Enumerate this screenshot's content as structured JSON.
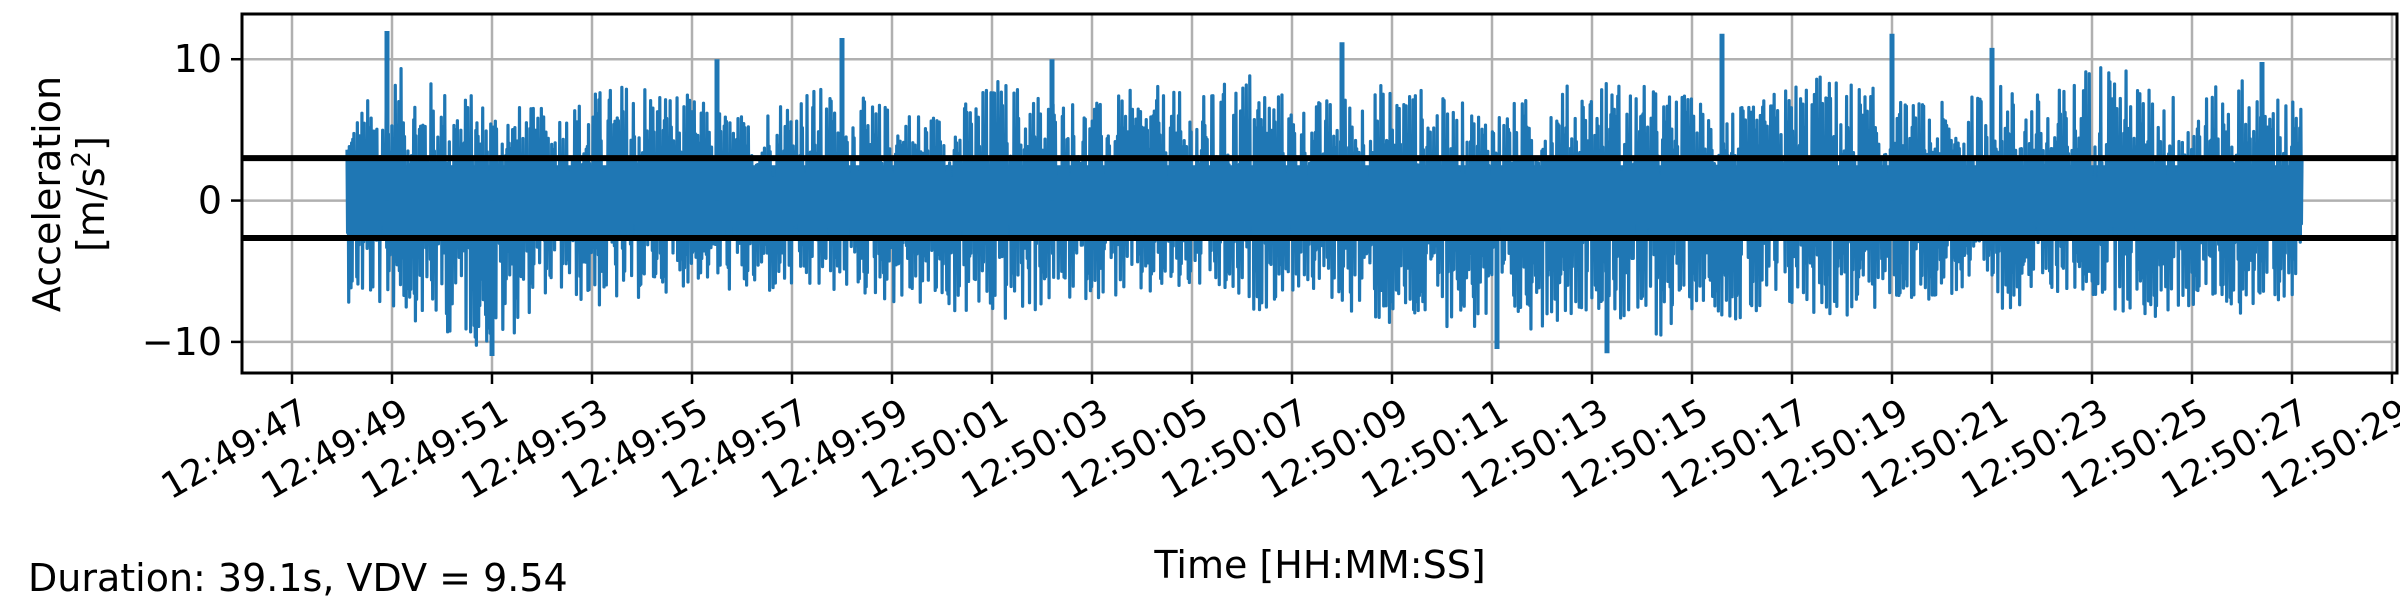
{
  "chart_data": {
    "type": "line",
    "title": "",
    "xlabel": "Time [HH:MM:SS]",
    "ylabel_line1": "Acceleration",
    "ylabel_line2_prefix": "[m/s",
    "ylabel_line2_sup": "2",
    "ylabel_line2_suffix": "]",
    "x_start": "12:49:48.1",
    "x_end": "12:50:27.2",
    "xlim": [
      "12:49:46.0",
      "12:50:29.1"
    ],
    "ylim": [
      -12.2,
      13.2
    ],
    "xticks": [
      "12:49:47",
      "12:49:49",
      "12:49:51",
      "12:49:53",
      "12:49:55",
      "12:49:57",
      "12:49:59",
      "12:50:01",
      "12:50:03",
      "12:50:05",
      "12:50:07",
      "12:50:09",
      "12:50:11",
      "12:50:13",
      "12:50:15",
      "12:50:17",
      "12:50:19",
      "12:50:21",
      "12:50:23",
      "12:50:25",
      "12:50:27",
      "12:50:29"
    ],
    "yticks": [
      {
        "value": 10,
        "label": "10"
      },
      {
        "value": 0,
        "label": "0"
      },
      {
        "value": -10,
        "label": "−10"
      }
    ],
    "grid": true,
    "series": [
      {
        "color": "#1f77b4",
        "envelope": {
          "upper": [
            5.8,
            9.5,
            8.2,
            7.1,
            6.5,
            8.0,
            9.0,
            7.2,
            6.0,
            8.6,
            7.5,
            6.8,
            6.2,
            8.9,
            7.8,
            7.0,
            8.3,
            7.3,
            9.6,
            6.9,
            7.7,
            8.8,
            7.1,
            6.7,
            7.9,
            9.0,
            8.1,
            7.4,
            6.6,
            9.2,
            8.7,
            7.2,
            6.9,
            8.4,
            7.5,
            10.9,
            8.0,
            7.6,
            9.3,
            7.0
          ],
          "lower": [
            -7.2,
            -8.0,
            -9.5,
            -11.0,
            -6.5,
            -7.8,
            -6.9,
            -5.8,
            -7.0,
            -6.8,
            -6.6,
            -7.5,
            -8.1,
            -9.0,
            -7.7,
            -6.9,
            -7.3,
            -6.5,
            -8.2,
            -6.4,
            -7.9,
            -9.8,
            -8.9,
            -10.0,
            -8.7,
            -7.6,
            -10.5,
            -7.2,
            -9.4,
            -8.0,
            -8.6,
            -7.4,
            -6.8,
            -7.9,
            -6.6,
            -7.3,
            -8.8,
            -7.5,
            -8.2,
            -6.6
          ]
        },
        "peaks": [
          {
            "t": "12:49:48.9",
            "a": 12.0
          },
          {
            "t": "12:49:51.0",
            "a": -11.0
          },
          {
            "t": "12:49:55.5",
            "a": 10.0
          },
          {
            "t": "12:49:58.0",
            "a": 11.5
          },
          {
            "t": "12:50:02.2",
            "a": 10.0
          },
          {
            "t": "12:50:08.0",
            "a": 11.2
          },
          {
            "t": "12:50:11.1",
            "a": -10.5
          },
          {
            "t": "12:50:13.3",
            "a": -10.8
          },
          {
            "t": "12:50:15.6",
            "a": 11.8
          },
          {
            "t": "12:50:19.0",
            "a": 11.8
          },
          {
            "t": "12:50:21.0",
            "a": 10.8
          },
          {
            "t": "12:50:26.4",
            "a": 9.8
          }
        ]
      }
    ],
    "hlines": [
      {
        "value": 3.0,
        "color": "#000000"
      },
      {
        "value": -2.65,
        "color": "#000000"
      }
    ]
  },
  "footer": {
    "summary": "Duration: 39.1s, VDV = 9.54"
  }
}
